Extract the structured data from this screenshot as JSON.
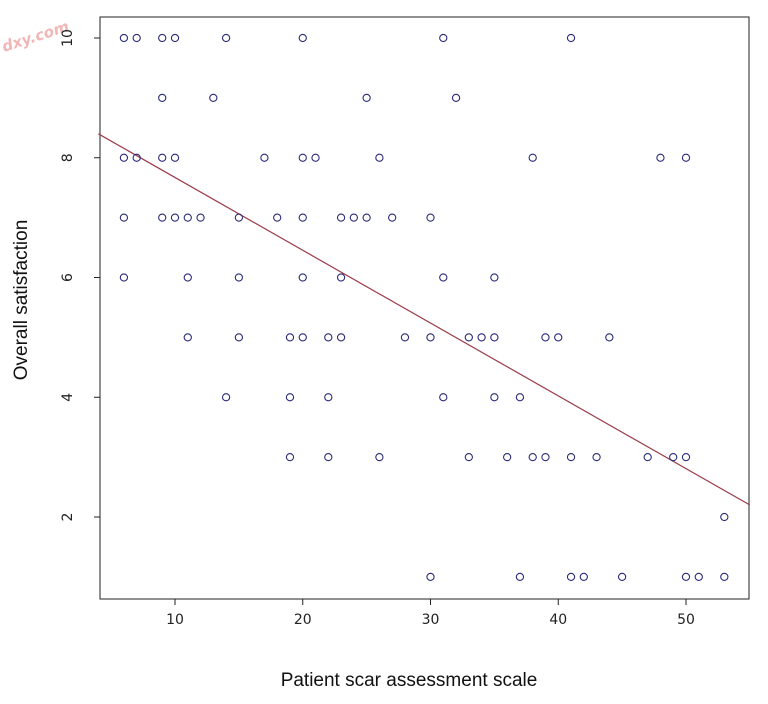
{
  "chart_data": {
    "type": "scatter",
    "title": "",
    "xlabel": "Patient scar assessment scale",
    "ylabel": "Overall satisfaction",
    "xlim": [
      4,
      55
    ],
    "ylim": [
      0.6,
      10.3
    ],
    "x_ticks": [
      10,
      20,
      30,
      40,
      50
    ],
    "y_ticks": [
      2,
      4,
      6,
      8,
      10
    ],
    "grid": false,
    "legend": "none",
    "point_color": "#2b2b7a",
    "line_color": "#9b3a4a",
    "regression_line": {
      "points": [
        [
          4,
          8.4
        ],
        [
          55,
          2.2
        ]
      ]
    },
    "points": [
      [
        6,
        10
      ],
      [
        7,
        10
      ],
      [
        9,
        10
      ],
      [
        10,
        10
      ],
      [
        14,
        10
      ],
      [
        20,
        10
      ],
      [
        31,
        10
      ],
      [
        41,
        10
      ],
      [
        9,
        9
      ],
      [
        13,
        9
      ],
      [
        25,
        9
      ],
      [
        32,
        9
      ],
      [
        6,
        8
      ],
      [
        7,
        8
      ],
      [
        9,
        8
      ],
      [
        10,
        8
      ],
      [
        17,
        8
      ],
      [
        20,
        8
      ],
      [
        21,
        8
      ],
      [
        26,
        8
      ],
      [
        38,
        8
      ],
      [
        48,
        8
      ],
      [
        50,
        8
      ],
      [
        6,
        7
      ],
      [
        9,
        7
      ],
      [
        10,
        7
      ],
      [
        11,
        7
      ],
      [
        12,
        7
      ],
      [
        15,
        7
      ],
      [
        18,
        7
      ],
      [
        20,
        7
      ],
      [
        23,
        7
      ],
      [
        24,
        7
      ],
      [
        25,
        7
      ],
      [
        27,
        7
      ],
      [
        30,
        7
      ],
      [
        6,
        6
      ],
      [
        11,
        6
      ],
      [
        15,
        6
      ],
      [
        20,
        6
      ],
      [
        23,
        6
      ],
      [
        31,
        6
      ],
      [
        35,
        6
      ],
      [
        11,
        5
      ],
      [
        15,
        5
      ],
      [
        19,
        5
      ],
      [
        20,
        5
      ],
      [
        22,
        5
      ],
      [
        23,
        5
      ],
      [
        28,
        5
      ],
      [
        30,
        5
      ],
      [
        33,
        5
      ],
      [
        34,
        5
      ],
      [
        35,
        5
      ],
      [
        39,
        5
      ],
      [
        40,
        5
      ],
      [
        44,
        5
      ],
      [
        14,
        4
      ],
      [
        19,
        4
      ],
      [
        22,
        4
      ],
      [
        31,
        4
      ],
      [
        35,
        4
      ],
      [
        37,
        4
      ],
      [
        19,
        3
      ],
      [
        22,
        3
      ],
      [
        26,
        3
      ],
      [
        33,
        3
      ],
      [
        36,
        3
      ],
      [
        38,
        3
      ],
      [
        39,
        3
      ],
      [
        41,
        3
      ],
      [
        43,
        3
      ],
      [
        47,
        3
      ],
      [
        49,
        3
      ],
      [
        50,
        3
      ],
      [
        53,
        2
      ],
      [
        30,
        1
      ],
      [
        37,
        1
      ],
      [
        41,
        1
      ],
      [
        42,
        1
      ],
      [
        45,
        1
      ],
      [
        50,
        1
      ],
      [
        51,
        1
      ],
      [
        53,
        1
      ]
    ]
  },
  "watermark_text": "dxy.com"
}
